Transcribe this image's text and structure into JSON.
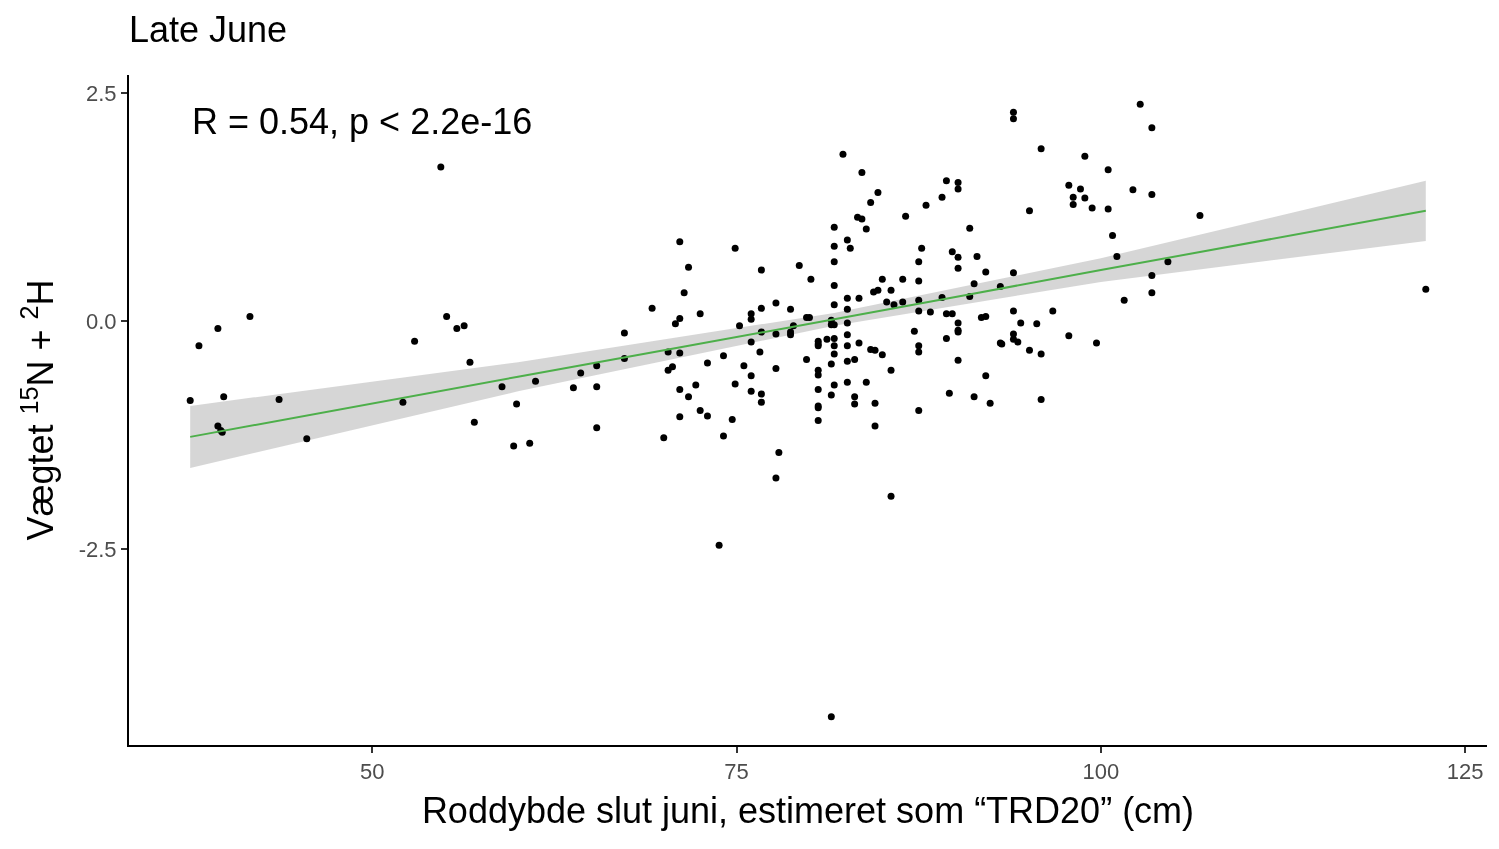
{
  "chart_data": {
    "type": "scatter",
    "title": "Late June",
    "xlabel": "Roddybde slut juni, estimeret som “TRD20” (cm)",
    "ylabel": "Vægtet $^{15}$N + $^{2}$H",
    "annotations": [
      "R = 0.54, p < 2.2e-16"
    ],
    "xlim": [
      33.3,
      126.5
    ],
    "ylim": [
      -4.65,
      2.7
    ],
    "xticks": [
      50,
      75,
      100,
      125
    ],
    "yticks": [
      {
        "value": -2.5,
        "label": "-2.5"
      },
      {
        "value": 0,
        "label": "0.0"
      },
      {
        "value": 2.5,
        "label": "2.5"
      }
    ],
    "grid": false,
    "marker": "circle",
    "series": [
      {
        "color": "#000000",
        "x": [
          37.5,
          38.1,
          39.4,
          39.4,
          39.6,
          39.7,
          39.8,
          41.6,
          43.6,
          45.5,
          52.1,
          52.9,
          54.7,
          55.1,
          55.8,
          56.3,
          56.7,
          57.0,
          58.9,
          59.7,
          59.9,
          60.8,
          61.2,
          63.8,
          64.3,
          65.4,
          65.4,
          65.4,
          71.1,
          74.9,
          71.7,
          76.7,
          79.3,
          80.1,
          71.4,
          69.2,
          77.7,
          78.7,
          76.7,
          72.5,
          71.1,
          70.8,
          76.0,
          76.0,
          75.2,
          67.3,
          76.7,
          77.7,
          78.7,
          78.7,
          78.9,
          79.8,
          80.0,
          67.3,
          70.3,
          71.1,
          76.0,
          76.6,
          74.1,
          73.0,
          70.6,
          70.3,
          75.5,
          77.7,
          79.8,
          76.0,
          72.2,
          74.9,
          71.1,
          71.7,
          76.0,
          76.7,
          76.7,
          72.5,
          73.0,
          71.1,
          74.7,
          70.0,
          74.1,
          77.9,
          77.7,
          82.3,
          83.6,
          84.7,
          84.2,
          89.4,
          90.2,
          90.2,
          89.1,
          88.0,
          86.6,
          83.3,
          83.6,
          83.9,
          81.7,
          91.0,
          82.6,
          82.8,
          81.7,
          87.7,
          89.8,
          90.2,
          91.5,
          81.7,
          87.5,
          90.2,
          92.1,
          81.7,
          85.0,
          86.4,
          87.5,
          85.6,
          84.4,
          84.7,
          81.7,
          82.6,
          83.4,
          85.3,
          85.8,
          86.4,
          87.5,
          89.1,
          91.3,
          91.0,
          93.1,
          82.6,
          87.5,
          88.3,
          89.4,
          89.8,
          90.2,
          90.2,
          90.2,
          91.8,
          92.1,
          81.5,
          81.7,
          81.5,
          82.6,
          82.6,
          81.2,
          80.6,
          80.6,
          80.6,
          81.7,
          81.7,
          82.6,
          83.4,
          84.2,
          84.5,
          81.7,
          85.0,
          87.2,
          87.5,
          87.5,
          89.4,
          90.2,
          81.5,
          82.6,
          83.1,
          80.6,
          80.6,
          85.6,
          80.6,
          81.7,
          81.5,
          82.6,
          83.9,
          83.1,
          83.1,
          84.5,
          80.6,
          80.6,
          80.6,
          84.5,
          87.5,
          89.6,
          91.3,
          92.4,
          92.1,
          93.1,
          73.8,
          85.6,
          81.5,
          94.0,
          94.0,
          102.7,
          103.5,
          95.9,
          98.9,
          100.5,
          97.8,
          98.6,
          98.1,
          98.9,
          98.1,
          99.4,
          100.5,
          102.2,
          103.5,
          95.1,
          106.8,
          100.8,
          101.1,
          104.6,
          103.5,
          103.5,
          101.6,
          122.3,
          94.0,
          94.0,
          96.7,
          94.5,
          95.6,
          97.8,
          94.0,
          94.0,
          94.3,
          93.2,
          95.1,
          95.9,
          99.7,
          95.9
        ],
        "values": [
          -0.87,
          -0.27,
          -0.08,
          -1.15,
          -1.2,
          -1.22,
          -0.83,
          0.05,
          -0.86,
          -1.29,
          -0.89,
          -0.22,
          1.69,
          0.05,
          -0.08,
          -0.05,
          -0.45,
          -1.11,
          -0.72,
          -1.37,
          -0.91,
          -1.34,
          -0.66,
          -0.73,
          -0.57,
          -0.49,
          -0.72,
          -1.17,
          0.87,
          0.8,
          0.59,
          0.56,
          0.61,
          0.46,
          0.31,
          0.14,
          0.2,
          0.13,
          0.14,
          0.08,
          0.03,
          -0.03,
          0.08,
          0.02,
          -0.05,
          -0.13,
          -0.12,
          -0.14,
          -0.12,
          -0.15,
          -0.05,
          0.04,
          0.04,
          -0.41,
          -0.34,
          -0.35,
          -0.23,
          -0.34,
          -0.38,
          -0.46,
          -0.5,
          -0.54,
          -0.49,
          -0.52,
          -0.42,
          -0.6,
          -0.7,
          -0.69,
          -0.75,
          -0.83,
          -0.77,
          -0.8,
          -0.89,
          -0.98,
          -1.04,
          -1.05,
          -1.08,
          -1.28,
          -1.26,
          -1.44,
          -1.72,
          1.83,
          1.63,
          1.41,
          1.3,
          1.54,
          1.52,
          1.45,
          1.36,
          1.27,
          1.15,
          1.14,
          1.12,
          1.01,
          1.03,
          1.02,
          0.89,
          0.8,
          0.82,
          0.8,
          0.76,
          0.7,
          0.71,
          0.65,
          0.65,
          0.58,
          0.54,
          0.39,
          0.46,
          0.46,
          0.44,
          0.34,
          0.32,
          0.34,
          0.18,
          0.25,
          0.25,
          0.21,
          0.18,
          0.21,
          0.23,
          0.26,
          0.41,
          0.27,
          0.38,
          0.13,
          0.11,
          0.1,
          0.08,
          0.08,
          -0.02,
          -0.1,
          -0.12,
          0.04,
          0.05,
          0.01,
          -0.04,
          -0.04,
          -0.02,
          -0.15,
          -0.2,
          -0.22,
          -0.25,
          -0.27,
          -0.19,
          -0.27,
          -0.27,
          -0.24,
          -0.31,
          -0.32,
          -0.36,
          -0.37,
          -0.11,
          -0.27,
          -0.34,
          -0.19,
          -0.43,
          -0.47,
          -0.44,
          -0.42,
          -0.54,
          -0.59,
          -0.54,
          -0.75,
          -0.7,
          -0.81,
          -0.67,
          -0.67,
          -0.83,
          -0.91,
          -0.9,
          -0.93,
          -0.95,
          -1.09,
          -1.15,
          -0.98,
          -0.79,
          -0.83,
          -0.9,
          -0.6,
          -0.24,
          -2.46,
          -1.92,
          -4.34,
          2.29,
          2.22,
          2.38,
          2.12,
          1.89,
          1.81,
          1.66,
          1.49,
          1.45,
          1.36,
          1.35,
          1.28,
          1.24,
          1.23,
          1.44,
          1.39,
          1.21,
          1.16,
          0.94,
          0.71,
          0.65,
          0.5,
          0.31,
          0.23,
          0.35,
          0.53,
          0.11,
          0.11,
          -0.02,
          -0.03,
          -0.16,
          -0.14,
          -0.2,
          -0.23,
          -0.25,
          -0.32,
          -0.36,
          -0.24,
          -0.86
        ]
      },
      {
        "type": "line",
        "marker": "none",
        "color": "#4daf4a",
        "x": [
          37.5,
          60,
          81.7,
          100,
          122.3
        ],
        "values": [
          -1.27,
          -0.61,
          0.02,
          0.56,
          1.21
        ],
        "lower": [
          -1.61,
          -0.77,
          -0.05,
          0.43,
          0.88
        ],
        "upper": [
          -0.93,
          -0.45,
          0.09,
          0.69,
          1.54
        ]
      }
    ]
  }
}
